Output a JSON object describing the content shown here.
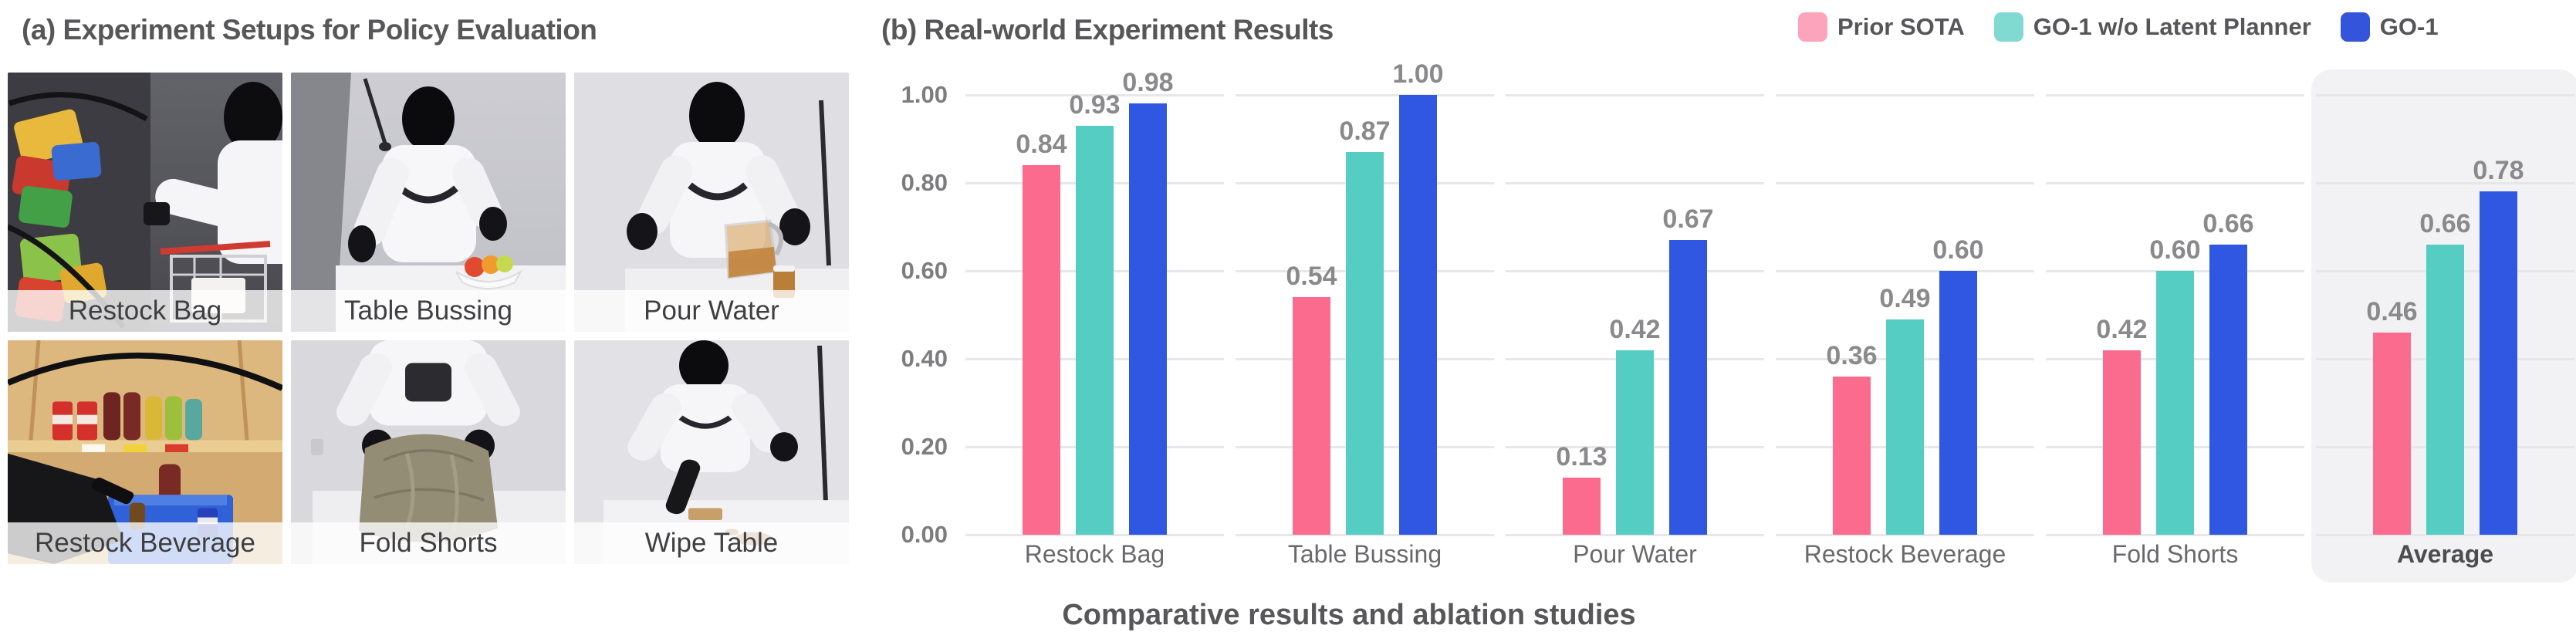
{
  "panel_a": {
    "title": "(a) Experiment Setups for Policy Evaluation",
    "photos": [
      {
        "label": "Restock Bag"
      },
      {
        "label": "Table Bussing"
      },
      {
        "label": "Pour Water"
      },
      {
        "label": "Restock Beverage"
      },
      {
        "label": "Fold Shorts"
      },
      {
        "label": "Wipe Table"
      }
    ]
  },
  "panel_b": {
    "title": "(b) Real-world Experiment Results",
    "caption": "Comparative results and ablation studies"
  },
  "chart_data": {
    "type": "bar",
    "title": "(b) Real-world Experiment Results",
    "categories": [
      "Restock Bag",
      "Table Bussing",
      "Pour Water",
      "Restock Beverage",
      "Fold Shorts",
      "Average"
    ],
    "series": [
      {
        "name": "Prior SOTA",
        "color": "#fb6b8d",
        "legend_color": "#fba4bb",
        "values": [
          0.84,
          0.54,
          0.13,
          0.36,
          0.42,
          0.46
        ]
      },
      {
        "name": "GO-1 w/o Latent Planner",
        "color": "#55cdc3",
        "legend_color": "#81dad2",
        "values": [
          0.93,
          0.87,
          0.42,
          0.49,
          0.6,
          0.66
        ]
      },
      {
        "name": "GO-1",
        "color": "#2f57e2",
        "legend_color": "#3354db",
        "values": [
          0.98,
          1.0,
          0.67,
          0.6,
          0.66,
          0.78
        ]
      }
    ],
    "ylim": [
      0,
      1
    ],
    "yticks": [
      "0.00",
      "0.20",
      "0.40",
      "0.60",
      "0.80",
      "1.00"
    ],
    "value_label_format": "2-decimals",
    "grid": "horizontal gridlines, drawn per category panel with gaps",
    "legend_position": "top-right",
    "highlight_category": "Average",
    "highlight_color": "#f2f2f4"
  }
}
